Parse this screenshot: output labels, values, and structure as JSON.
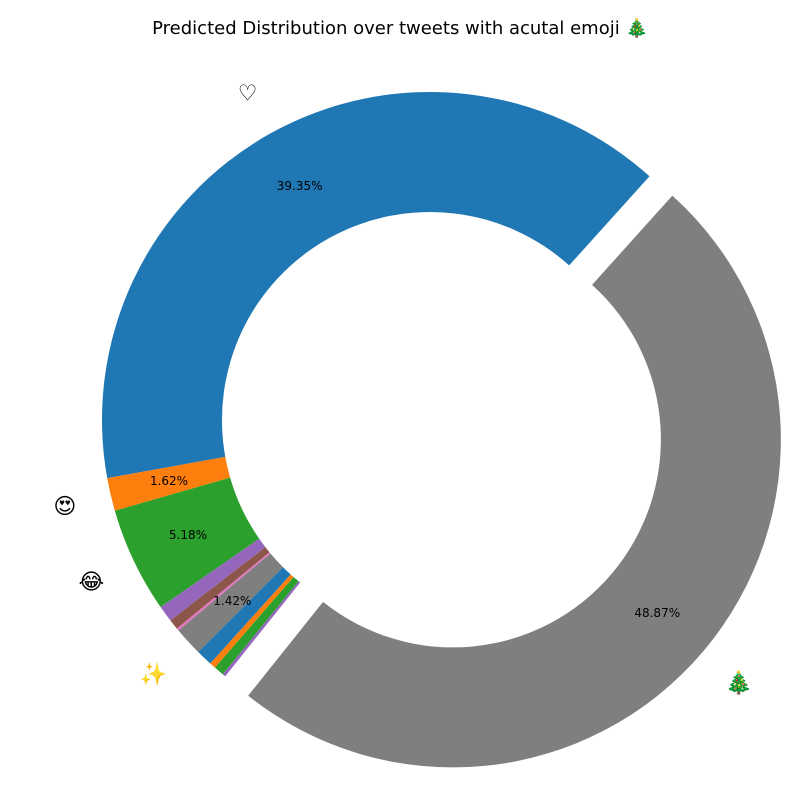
{
  "chart_data": {
    "type": "pie",
    "style": "donut",
    "title": "Predicted Distribution over tweets with acutal emoji 🎄",
    "start_angle_deg": 48,
    "direction": "counterclockwise",
    "slices": [
      {
        "value": 39.35,
        "color": "#1f77b4",
        "pct_label": "39.35%",
        "emoji_label": "♡"
      },
      {
        "value": 1.62,
        "color": "#ff7f0e",
        "pct_label": "1.62%",
        "emoji_label": "😍"
      },
      {
        "value": 5.18,
        "color": "#2ca02c",
        "pct_label": "5.18%",
        "emoji_label": "😂"
      },
      {
        "value": 0.8,
        "color": "#9467bd",
        "pct_label": "",
        "emoji_label": ""
      },
      {
        "value": 0.5,
        "color": "#8c564b",
        "pct_label": "",
        "emoji_label": ""
      },
      {
        "value": 0.12,
        "color": "#e377c2",
        "pct_label": "",
        "emoji_label": ""
      },
      {
        "value": 1.42,
        "color": "#7f7f7f",
        "pct_label": "1.42%",
        "emoji_label": "✨"
      },
      {
        "value": 0.8,
        "color": "#1f77b4",
        "pct_label": "",
        "emoji_label": ""
      },
      {
        "value": 0.3,
        "color": "#ff7f0e",
        "pct_label": "",
        "emoji_label": ""
      },
      {
        "value": 0.5,
        "color": "#2ca02c",
        "pct_label": "",
        "emoji_label": ""
      },
      {
        "value": 0.15,
        "color": "#9467bd",
        "pct_label": "",
        "emoji_label": ""
      },
      {
        "value": 48.87,
        "color": "#7f7f7f",
        "pct_label": "48.87%",
        "emoji_label": "🎄",
        "exploded": true
      }
    ]
  }
}
